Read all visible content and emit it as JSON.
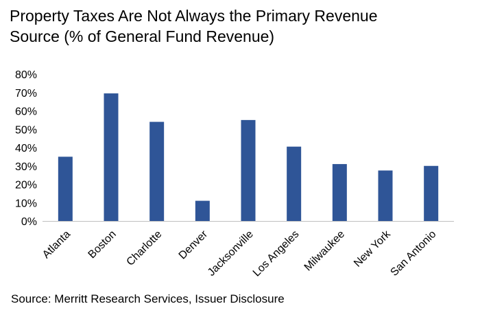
{
  "chart_data": {
    "type": "bar",
    "title_line1": "Property Taxes Are Not Always the Primary Revenue",
    "title_line2": "Source (% of General Fund Revenue)",
    "categories": [
      "Atlanta",
      "Boston",
      "Charlotte",
      "Denver",
      "Jacksonville",
      "Los Angeles",
      "Milwaukee",
      "New York",
      "San Antonio"
    ],
    "values": [
      35,
      69.5,
      54,
      11,
      55,
      40.5,
      31,
      27.5,
      30
    ],
    "ylim": [
      0,
      80
    ],
    "yticks": [
      "0%",
      "10%",
      "20%",
      "30%",
      "40%",
      "50%",
      "60%",
      "70%",
      "80%"
    ],
    "xlabel": "",
    "ylabel": "",
    "grid": false,
    "bar_color": "#2f5597"
  },
  "source": "Source: Merritt Research Services, Issuer Disclosure"
}
